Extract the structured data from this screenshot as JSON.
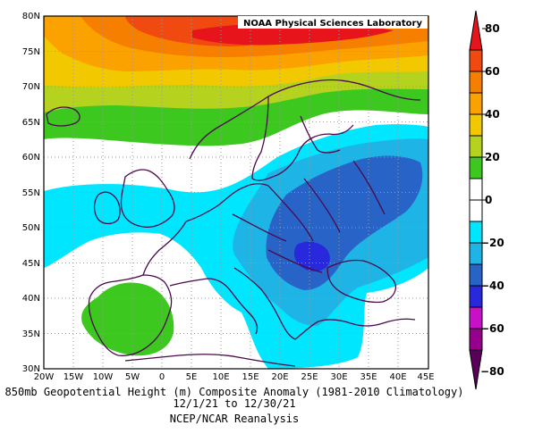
{
  "header": {
    "source_label": "NOAA Physical Sciences Laboratory"
  },
  "footer": {
    "line1": "850mb Geopotential Height (m) Composite Anomaly (1981-2010 Climatology)",
    "line2": "12/1/21 to 12/30/21",
    "line3": "NCEP/NCAR Reanalysis"
  },
  "map": {
    "lat_labels": [
      "80N",
      "75N",
      "70N",
      "65N",
      "60N",
      "55N",
      "50N",
      "45N",
      "40N",
      "35N",
      "30N"
    ],
    "lon_labels": [
      "20W",
      "15W",
      "10W",
      "5W",
      "0",
      "5E",
      "10E",
      "15E",
      "20E",
      "25E",
      "30E",
      "35E",
      "40E",
      "45E"
    ],
    "extent": {
      "lon": [
        -20,
        45
      ],
      "lat": [
        30,
        80
      ]
    },
    "grid": "dotted"
  },
  "colorbar": {
    "tick_labels": [
      "80",
      "60",
      "40",
      "20",
      "0",
      "−20",
      "−40",
      "−60",
      "−80"
    ],
    "range": [
      -80,
      80
    ],
    "colors": {
      "p80": "#e8141c",
      "p70": "#f04a10",
      "p60": "#f77f00",
      "p50": "#fca200",
      "p40": "#f2c800",
      "p30": "#b4d21e",
      "p20": "#3cc81e",
      "p10": "#ffffff",
      "n10": "#ffffff",
      "n20": "#00e6ff",
      "n30": "#1eb4e6",
      "n40": "#2864c8",
      "n50": "#2828dc",
      "n60": "#c810c8",
      "n70": "#96008c",
      "n80": "#5a005a"
    }
  },
  "chart_data": {
    "type": "heatmap",
    "variable": "850mb Geopotential Height Composite Anomaly",
    "units": "m",
    "climatology": "1981-2010",
    "period": [
      "12/1/21",
      "12/30/21"
    ],
    "extent": {
      "lon": [
        -20,
        45
      ],
      "lat": [
        30,
        80
      ]
    },
    "levels": [
      -80,
      -70,
      -60,
      -50,
      -40,
      -30,
      -20,
      -10,
      0,
      10,
      20,
      30,
      40,
      50,
      60,
      70,
      80
    ]
  }
}
